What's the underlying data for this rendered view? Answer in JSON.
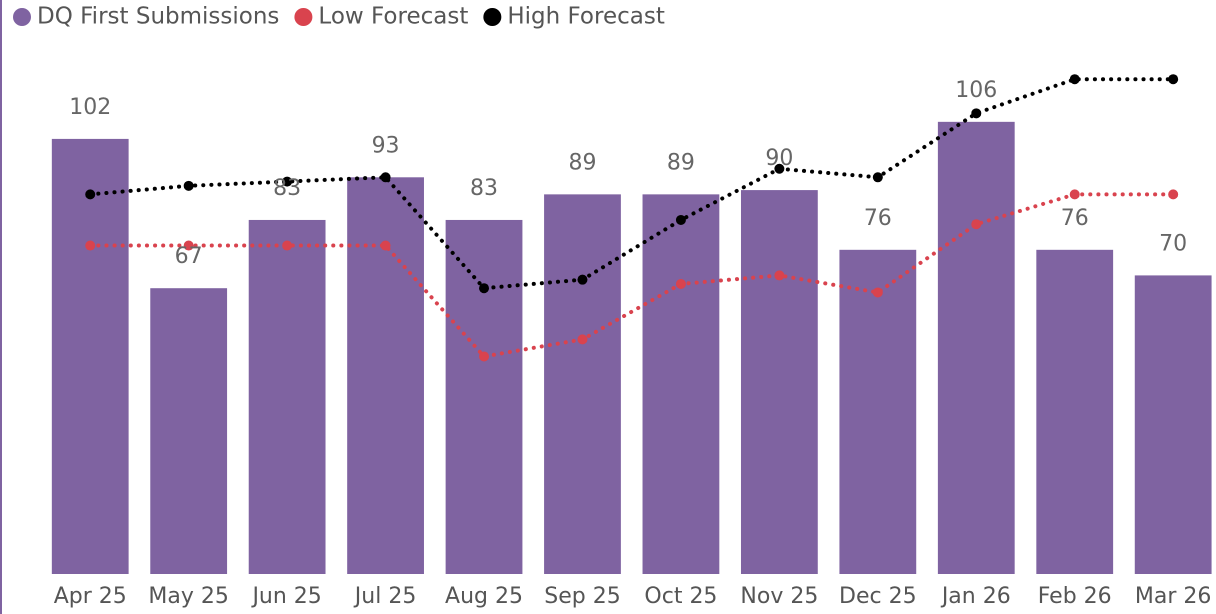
{
  "chart_data": {
    "type": "combo",
    "categories": [
      "Apr 25",
      "May 25",
      "Jun 25",
      "Jul 25",
      "Aug 25",
      "Sep 25",
      "Oct 25",
      "Nov 25",
      "Dec 25",
      "Jan 26",
      "Feb 26",
      "Mar 26"
    ],
    "series": [
      {
        "name": "DQ First Submissions",
        "type": "bar",
        "color": "#7f63a1",
        "values": [
          102,
          67,
          83,
          93,
          83,
          89,
          89,
          90,
          76,
          106,
          76,
          70
        ]
      },
      {
        "name": "Low Forecast",
        "type": "line",
        "color": "#d9434e",
        "values": [
          77,
          77,
          77,
          77,
          51,
          55,
          68,
          70,
          66,
          82,
          89,
          89
        ]
      },
      {
        "name": "High Forecast",
        "type": "line",
        "color": "#000000",
        "values": [
          89,
          91,
          92,
          93,
          67,
          69,
          83,
          95,
          93,
          108,
          116,
          116
        ]
      }
    ],
    "ylim": [
      0,
      128
    ],
    "legend": "top-left"
  }
}
